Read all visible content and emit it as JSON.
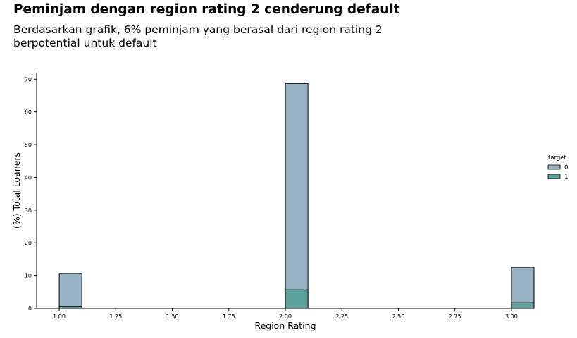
{
  "header": {
    "title": "Peminjam dengan region rating 2 cenderung default",
    "subtitle": "Berdasarkan grafik, 6% peminjam yang berasal dari region rating 2 berpotential untuk default"
  },
  "chart_data": {
    "type": "bar",
    "xlabel": "Region Rating",
    "ylabel": "(%) Total Loaners",
    "xlim": [
      0.9,
      3.1
    ],
    "ylim": [
      0,
      72
    ],
    "xticks": [
      "1.00",
      "1.25",
      "1.50",
      "1.75",
      "2.00",
      "2.25",
      "2.50",
      "2.75",
      "3.00"
    ],
    "yticks": [
      "0",
      "10",
      "20",
      "30",
      "40",
      "50",
      "60",
      "70"
    ],
    "bin_width": 0.1,
    "categories": [
      1,
      2,
      3
    ],
    "legend": {
      "title": "target",
      "position": "right"
    },
    "series": [
      {
        "name": "0",
        "color": "#97b2c5",
        "values": [
          10.6,
          68.7,
          12.5
        ]
      },
      {
        "name": "1",
        "color": "#5ea29f",
        "values": [
          0.6,
          5.9,
          1.7
        ]
      }
    ],
    "grid": false
  }
}
